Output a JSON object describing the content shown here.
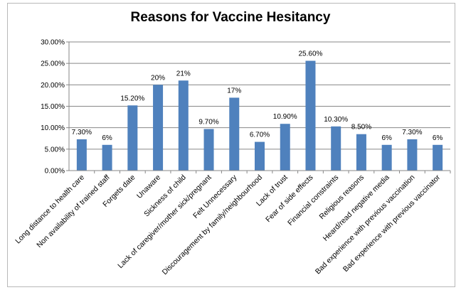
{
  "chart_data": {
    "type": "bar",
    "title": "Reasons for Vaccine Hesitancy",
    "xlabel": "",
    "ylabel": "",
    "ylim": [
      0,
      30
    ],
    "y_tick_labels": [
      "0.00%",
      "5.00%",
      "10.00%",
      "15.00%",
      "20.00%",
      "25.00%",
      "30.00%"
    ],
    "grid": true,
    "legend": "none",
    "bar_color": "#4f81bd",
    "categories": [
      "Long distance to health care",
      "Non availability of trained staff",
      "Forgets date",
      "Unaware",
      "Sickness of child",
      "Lack of caregiver/mother sick/pregnant",
      "Felt Unnecessary",
      "Discouragement by family/neighbourhood",
      "Lack of trust",
      "Fear of side effects",
      "Financial constraints",
      "Religious reasons",
      "Heard/read negative media",
      "Bad experience with previous vaccination",
      "Bad experience with previous vaccinator"
    ],
    "values": [
      7.3,
      6,
      15.2,
      20,
      21,
      9.7,
      17,
      6.7,
      10.9,
      25.6,
      10.3,
      8.5,
      6,
      7.3,
      6
    ],
    "data_labels": [
      "7.30%",
      "6%",
      "15.20%",
      "20%",
      "21%",
      "9.70%",
      "17%",
      "6.70%",
      "10.90%",
      "25.60%",
      "10.30%",
      "8.50%",
      "6%",
      "7.30%",
      "6%"
    ]
  }
}
